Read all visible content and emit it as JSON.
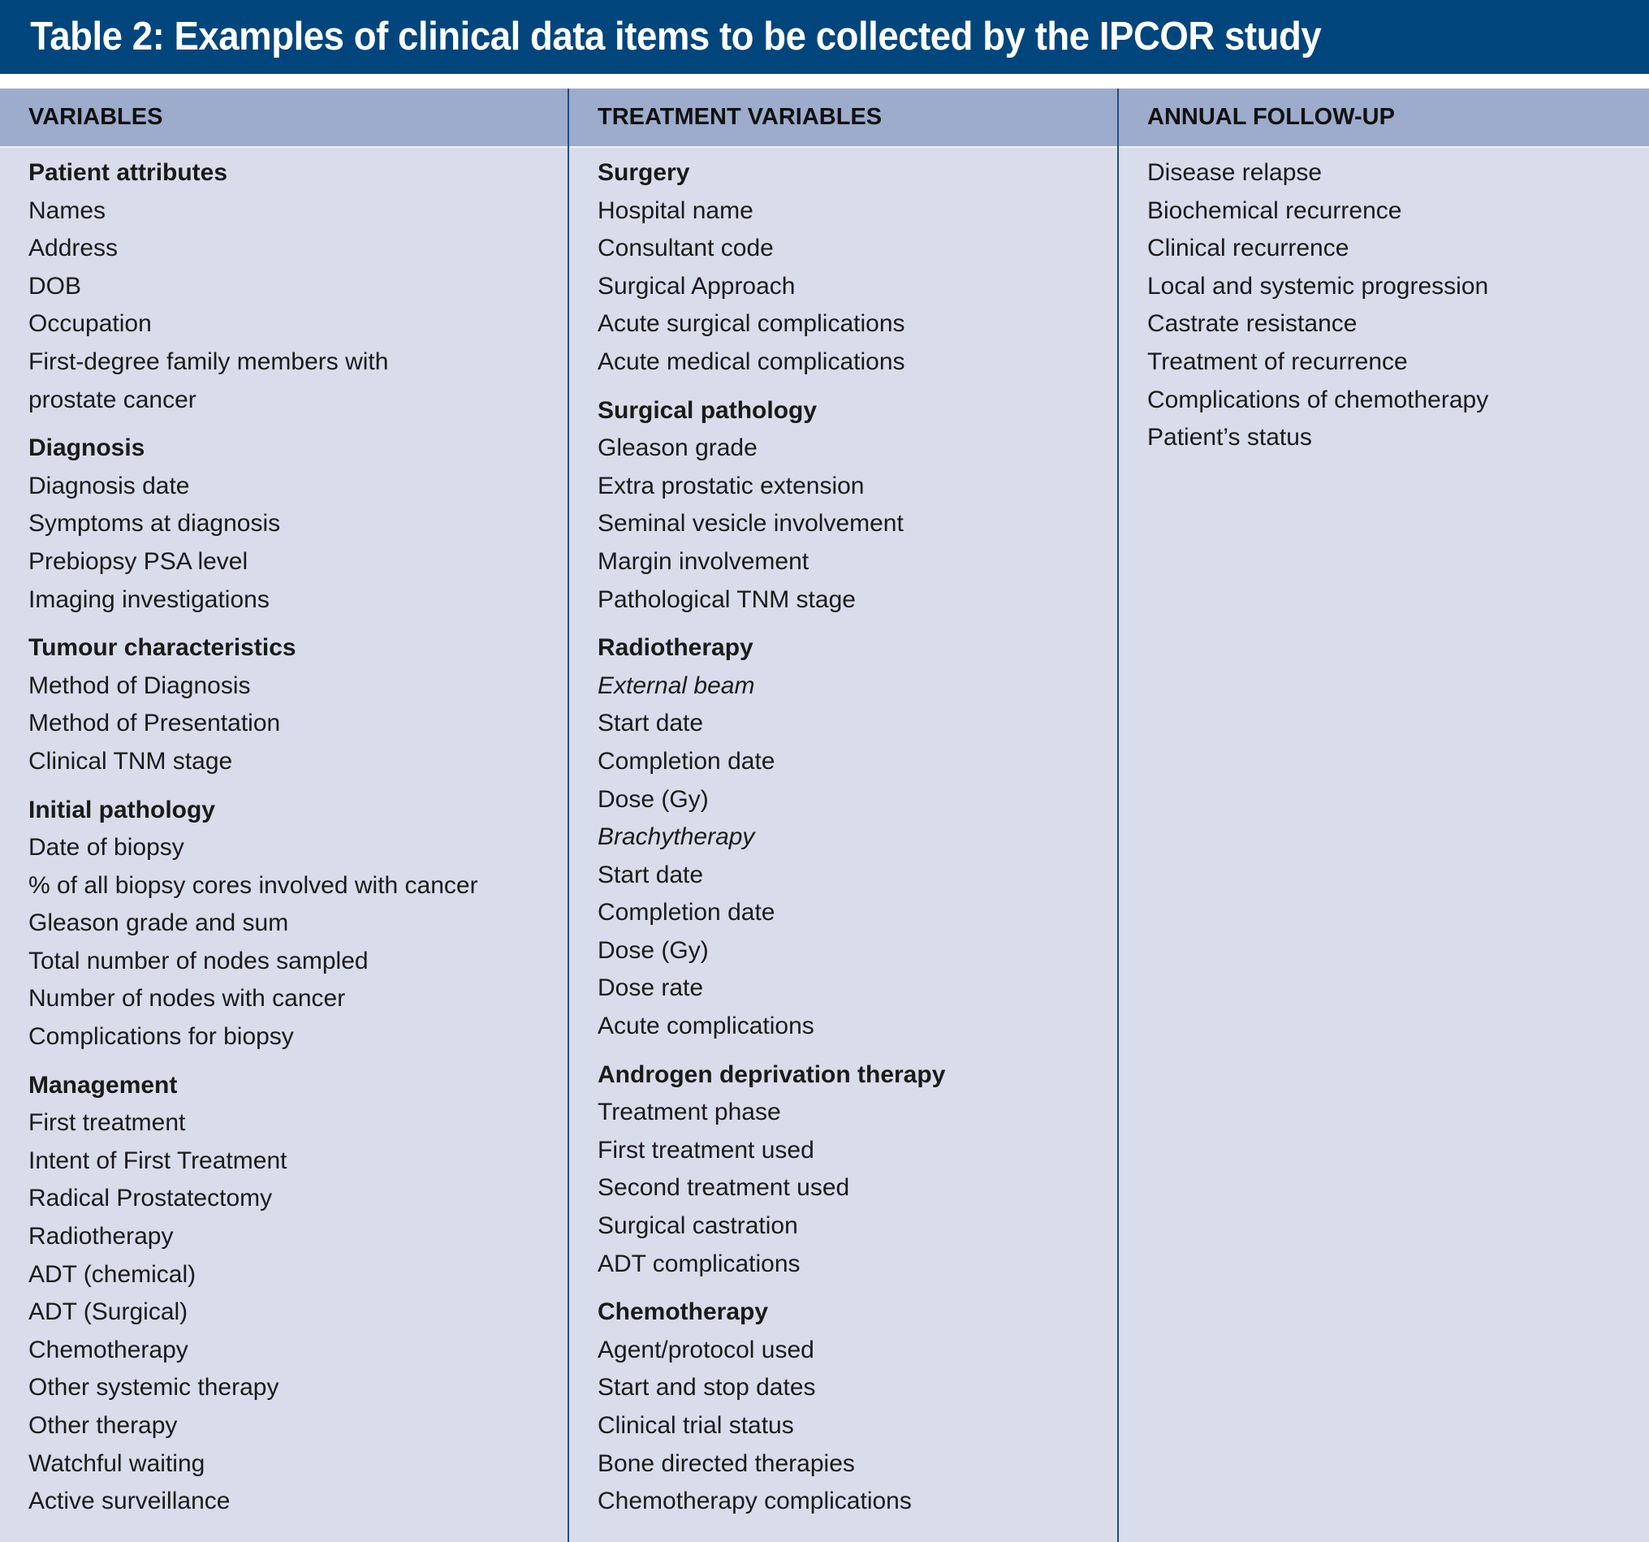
{
  "title": "Table 2: Examples of clinical data items to be collected by the IPCOR study",
  "colors": {
    "title_bar": "#00457c",
    "header": "#9daccc",
    "body": "#d9dcea",
    "divider": "#1f4f8a"
  },
  "columns": [
    {
      "header": "VARIABLES",
      "items": [
        {
          "text": "Patient attributes",
          "style": "h"
        },
        {
          "text": "Names"
        },
        {
          "text": "Address"
        },
        {
          "text": "DOB"
        },
        {
          "text": "Occupation"
        },
        {
          "text": "First-degree family members with"
        },
        {
          "text": "prostate cancer"
        },
        {
          "text": "Diagnosis",
          "style": "h"
        },
        {
          "text": "Diagnosis date"
        },
        {
          "text": "Symptoms at diagnosis"
        },
        {
          "text": "Prebiopsy PSA level"
        },
        {
          "text": "Imaging investigations"
        },
        {
          "text": "Tumour characteristics",
          "style": "h"
        },
        {
          "text": "Method of Diagnosis"
        },
        {
          "text": "Method of Presentation"
        },
        {
          "text": "Clinical TNM stage"
        },
        {
          "text": "Initial pathology",
          "style": "h"
        },
        {
          "text": "Date of biopsy"
        },
        {
          "text": "% of all biopsy cores involved with cancer"
        },
        {
          "text": "Gleason grade and sum"
        },
        {
          "text": "Total number of nodes sampled"
        },
        {
          "text": "Number of nodes with cancer"
        },
        {
          "text": "Complications for biopsy"
        },
        {
          "text": "Management",
          "style": "h"
        },
        {
          "text": "First treatment"
        },
        {
          "text": "Intent of First Treatment"
        },
        {
          "text": "Radical Prostatectomy"
        },
        {
          "text": "Radiotherapy"
        },
        {
          "text": "ADT (chemical)"
        },
        {
          "text": "ADT (Surgical)"
        },
        {
          "text": "Chemotherapy"
        },
        {
          "text": "Other systemic therapy"
        },
        {
          "text": "Other therapy"
        },
        {
          "text": "Watchful waiting"
        },
        {
          "text": "Active surveillance"
        }
      ]
    },
    {
      "header": "TREATMENT VARIABLES",
      "items": [
        {
          "text": "Surgery",
          "style": "h"
        },
        {
          "text": "Hospital name"
        },
        {
          "text": "Consultant code"
        },
        {
          "text": "Surgical Approach"
        },
        {
          "text": "Acute surgical complications"
        },
        {
          "text": "Acute medical complications"
        },
        {
          "text": "Surgical pathology",
          "style": "h"
        },
        {
          "text": "Gleason grade"
        },
        {
          "text": "Extra prostatic extension"
        },
        {
          "text": "Seminal vesicle involvement"
        },
        {
          "text": "Margin involvement"
        },
        {
          "text": "Pathological TNM stage"
        },
        {
          "text": "Radiotherapy",
          "style": "h"
        },
        {
          "text": "External beam",
          "style": "i"
        },
        {
          "text": "Start date"
        },
        {
          "text": "Completion date"
        },
        {
          "text": "Dose (Gy)"
        },
        {
          "text": "Brachytherapy",
          "style": "i"
        },
        {
          "text": "Start date"
        },
        {
          "text": "Completion date"
        },
        {
          "text": "Dose (Gy)"
        },
        {
          "text": "Dose rate"
        },
        {
          "text": "Acute complications"
        },
        {
          "text": "Androgen deprivation therapy",
          "style": "h"
        },
        {
          "text": "Treatment phase"
        },
        {
          "text": "First treatment used"
        },
        {
          "text": "Second treatment used"
        },
        {
          "text": "Surgical castration"
        },
        {
          "text": "ADT complications"
        },
        {
          "text": "Chemotherapy",
          "style": "h"
        },
        {
          "text": "Agent/protocol used"
        },
        {
          "text": "Start and stop dates"
        },
        {
          "text": "Clinical trial status"
        },
        {
          "text": "Bone directed therapies"
        },
        {
          "text": "Chemotherapy complications"
        }
      ]
    },
    {
      "header": "ANNUAL FOLLOW-UP",
      "items": [
        {
          "text": "Disease relapse"
        },
        {
          "text": "Biochemical recurrence"
        },
        {
          "text": "Clinical recurrence"
        },
        {
          "text": "Local and systemic progression"
        },
        {
          "text": "Castrate resistance"
        },
        {
          "text": "Treatment of recurrence"
        },
        {
          "text": "Complications of chemotherapy"
        },
        {
          "text": "Patient’s status"
        }
      ]
    }
  ]
}
